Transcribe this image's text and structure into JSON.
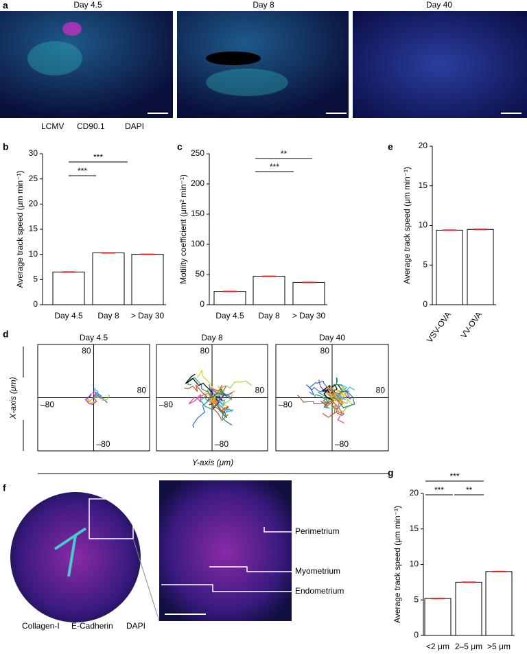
{
  "panels": {
    "a": {
      "label": "a",
      "titles": [
        "Day 4.5",
        "Day 8",
        "Day 40"
      ],
      "legend": [
        {
          "text": "LCMV",
          "color": "#e83ad8"
        },
        {
          "text": "CD90.1",
          "color": "#2fd6d6"
        },
        {
          "text": "DAPI",
          "color": "#000000"
        }
      ]
    },
    "d": {
      "label": "d",
      "titles": [
        "Day 4.5",
        "Day 8",
        "Day 40"
      ],
      "tick_pos": "80",
      "tick_neg": "–80",
      "x_axis": "X-axis (μm)",
      "y_axis": "Y-axis (μm)"
    },
    "f": {
      "label": "f",
      "structures": [
        "Perimetrium",
        "Myometrium",
        "Endometrium"
      ],
      "legend": [
        {
          "text": "Collagen-I",
          "color": "#e83ad8"
        },
        {
          "text": "E-Cadherin",
          "color": "#2fd6d6"
        },
        {
          "text": "DAPI",
          "color": "#2a2ae0"
        }
      ]
    }
  },
  "chart_data": [
    {
      "type": "bar",
      "panel": "b",
      "ylabel": "Average track speed (μm min⁻¹)",
      "categories": [
        "Day 4.5",
        "Day 8",
        "> Day 30"
      ],
      "values": [
        6.5,
        10.3,
        10.0
      ],
      "ylim": [
        0,
        30
      ],
      "yticks": [
        0,
        5,
        10,
        15,
        20,
        25,
        30
      ],
      "annotations": [
        "***",
        "***"
      ]
    },
    {
      "type": "bar",
      "panel": "c",
      "ylabel": "Motility coefficient (μm² min⁻¹)",
      "categories": [
        "Day 4.5",
        "Day 8",
        "> Day 30"
      ],
      "values": [
        22,
        47,
        37
      ],
      "ylim": [
        0,
        250
      ],
      "yticks": [
        0,
        50,
        100,
        150,
        200,
        250
      ],
      "annotations": [
        "**",
        "***"
      ]
    },
    {
      "type": "bar",
      "panel": "e",
      "ylabel": "Average track speed (μm min⁻¹)",
      "categories": [
        "VSV-OVA",
        "VV-OVA"
      ],
      "values": [
        9.4,
        9.5
      ],
      "ylim": [
        0,
        20
      ],
      "yticks": [
        0,
        5,
        10,
        15,
        20
      ],
      "annotations": []
    },
    {
      "type": "bar",
      "panel": "g",
      "ylabel": "Average track speed (μm min⁻¹)",
      "categories": [
        "<2 μm",
        "2–5 μm",
        ">5 μm"
      ],
      "values": [
        5.2,
        7.5,
        9.0
      ],
      "ylim": [
        0,
        20
      ],
      "yticks": [
        0,
        5,
        10,
        15,
        20
      ],
      "annotations": [
        "***",
        "***",
        "**"
      ]
    }
  ]
}
